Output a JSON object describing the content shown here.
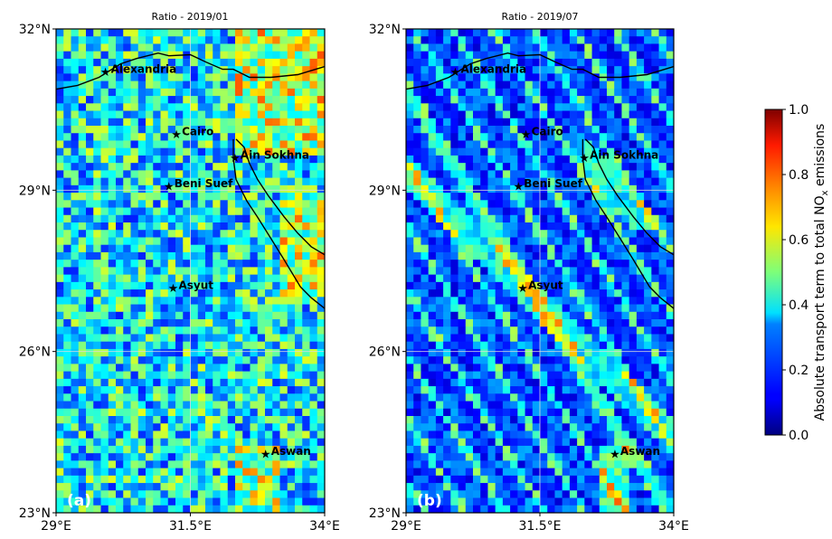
{
  "panels": [
    {
      "id": "a",
      "title": "Ratio - 2019/01",
      "label": "(a)",
      "grid_seed": 7,
      "pattern": "winter"
    },
    {
      "id": "b",
      "title": "Ratio - 2019/07",
      "label": "(b)",
      "grid_seed": 19,
      "pattern": "summer"
    }
  ],
  "map_extent": {
    "lon_min": 29,
    "lon_max": 34,
    "lat_min": 23,
    "lat_max": 32
  },
  "x_ticks": [
    {
      "value": 29,
      "label": "29°E"
    },
    {
      "value": 31.5,
      "label": "31.5°E"
    },
    {
      "value": 34,
      "label": "34°E"
    }
  ],
  "y_ticks": [
    {
      "value": 32,
      "label": "32°N"
    },
    {
      "value": 29,
      "label": "29°N"
    },
    {
      "value": 26,
      "label": "26°N"
    },
    {
      "value": 23,
      "label": "23°N"
    }
  ],
  "cities": [
    {
      "name": "Alexandria",
      "lon": 29.92,
      "lat": 31.2
    },
    {
      "name": "Cairo",
      "lon": 31.24,
      "lat": 30.04
    },
    {
      "name": "Ain Sokhna",
      "lon": 32.33,
      "lat": 29.6
    },
    {
      "name": "Beni Suef",
      "lon": 31.1,
      "lat": 29.07
    },
    {
      "name": "Asyut",
      "lon": 31.18,
      "lat": 27.18
    },
    {
      "name": "Aswan",
      "lon": 32.9,
      "lat": 24.09
    }
  ],
  "colorbar": {
    "label": "Absolute transport term to total NOx emissions",
    "label_parts": {
      "pre": "Absolute transport term to total NO",
      "sub": "x",
      "post": " emissions"
    },
    "min": 0.0,
    "max": 1.0,
    "ticks": [
      "0.0",
      "0.2",
      "0.4",
      "0.6",
      "0.8",
      "1.0"
    ],
    "colormap": "jet"
  },
  "colors": {
    "grid_line": "#dcdcdc",
    "coast": "#000000"
  }
}
